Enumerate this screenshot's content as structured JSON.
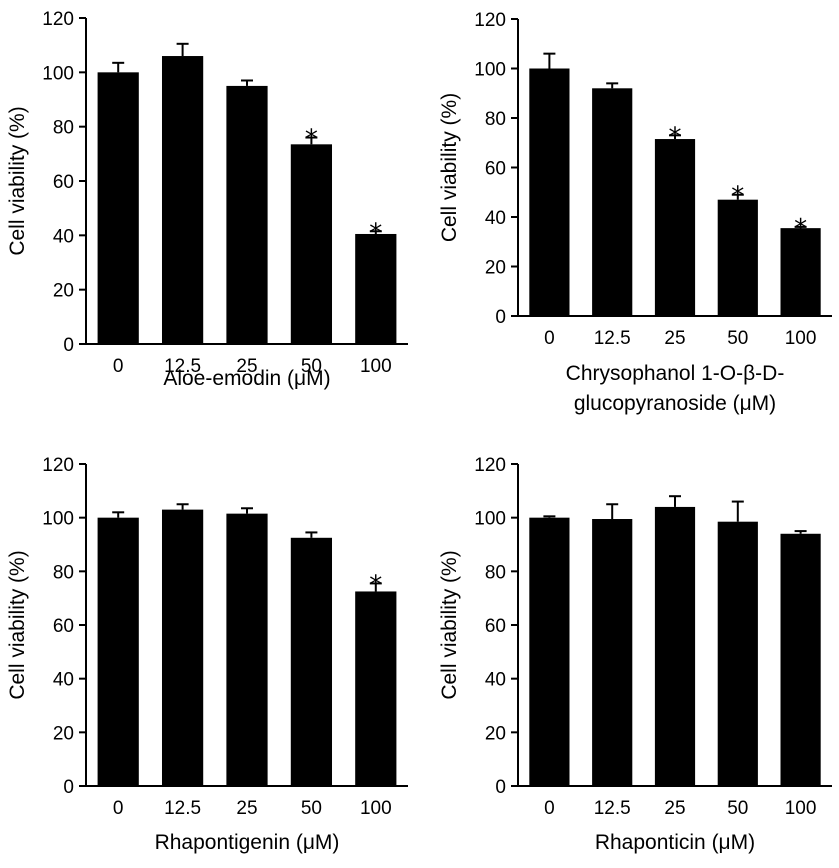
{
  "chart_data": [
    {
      "type": "bar",
      "categories": [
        "0",
        "12.5",
        "25",
        "50",
        "100"
      ],
      "values": [
        100,
        106,
        95,
        73.5,
        40.5
      ],
      "errors": [
        3.5,
        4.5,
        2,
        2.5,
        1
      ],
      "significance": [
        "",
        "",
        "",
        "*",
        "*"
      ],
      "xlabel": [
        "Aloe-emodin (μM)"
      ],
      "ylabel": "Cell viability (%)",
      "ylim": [
        0,
        120
      ],
      "yticks": [
        0,
        20,
        40,
        60,
        80,
        100,
        120
      ],
      "bar_color": "#000000"
    },
    {
      "type": "bar",
      "categories": [
        "0",
        "12.5",
        "25",
        "50",
        "100"
      ],
      "values": [
        100,
        92,
        71.5,
        47,
        35.5
      ],
      "errors": [
        6,
        2,
        1.5,
        2,
        0.5
      ],
      "significance": [
        "",
        "",
        "*",
        "*",
        "*"
      ],
      "xlabel": [
        "Chrysophanol 1-O-β-D-",
        "glucopyranoside (μM)"
      ],
      "ylabel": "Cell viability (%)",
      "ylim": [
        0,
        120
      ],
      "yticks": [
        0,
        20,
        40,
        60,
        80,
        100,
        120
      ],
      "bar_color": "#000000"
    },
    {
      "type": "bar",
      "categories": [
        "0",
        "12.5",
        "25",
        "50",
        "100"
      ],
      "values": [
        100,
        103,
        101.5,
        92.5,
        72.5
      ],
      "errors": [
        2,
        2,
        2,
        2,
        3
      ],
      "significance": [
        "",
        "",
        "",
        "",
        "*"
      ],
      "xlabel": [
        "Rhapontigenin (μM)"
      ],
      "ylabel": "Cell viability (%)",
      "ylim": [
        0,
        120
      ],
      "yticks": [
        0,
        20,
        40,
        60,
        80,
        100,
        120
      ],
      "bar_color": "#000000"
    },
    {
      "type": "bar",
      "categories": [
        "0",
        "12.5",
        "25",
        "50",
        "100"
      ],
      "values": [
        100,
        99.5,
        104,
        98.5,
        94
      ],
      "errors": [
        0.5,
        5.5,
        4,
        7.5,
        1
      ],
      "significance": [
        "",
        "",
        "",
        "",
        ""
      ],
      "xlabel": [
        "Rhaponticin (μM)"
      ],
      "ylabel": "Cell viability (%)",
      "ylim": [
        0,
        120
      ],
      "yticks": [
        0,
        20,
        40,
        60,
        80,
        100,
        120
      ],
      "bar_color": "#000000"
    }
  ]
}
